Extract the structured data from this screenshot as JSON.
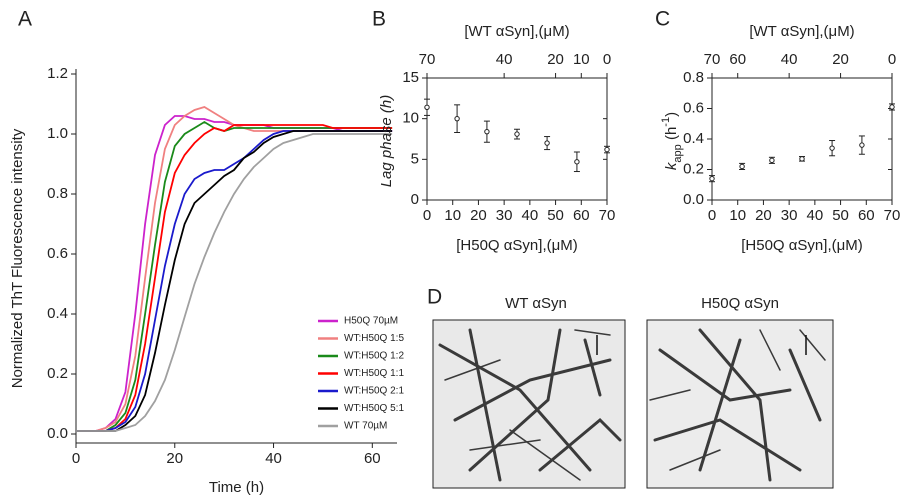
{
  "chart_data": [
    {
      "type": "line",
      "panel": "A",
      "x_label": "Time (h)",
      "y_label": "Normalized ThT Fluorescence intensity",
      "xlim": [
        0,
        65
      ],
      "ylim": [
        -0.03,
        1.2
      ],
      "xticks": [
        0,
        20,
        40,
        60
      ],
      "yticks": [
        {
          "value": 0,
          "label": "0.0"
        },
        0.2,
        0.4,
        0.6,
        0.8,
        {
          "value": 1,
          "label": "1.0"
        },
        1.2
      ],
      "x": [
        0,
        2,
        4,
        6,
        8,
        10,
        12,
        14,
        16,
        18,
        20,
        22,
        24,
        26,
        28,
        30,
        32,
        34,
        36,
        38,
        40,
        42,
        44,
        46,
        48,
        50,
        52,
        54,
        56,
        58,
        60,
        62,
        64
      ],
      "series": [
        {
          "name": "H50Q 70µM",
          "color": "#cc22cc",
          "values": [
            0.01,
            0.01,
            0.01,
            0.02,
            0.05,
            0.14,
            0.4,
            0.7,
            0.93,
            1.03,
            1.06,
            1.06,
            1.05,
            1.05,
            1.04,
            1.04,
            1.03,
            1.03,
            1.03,
            1.03,
            1.02,
            1.02,
            1.02,
            1.02,
            1.02,
            1.02,
            1.02,
            1.01,
            1.01,
            1.01,
            1.01,
            1.01,
            1.01
          ]
        },
        {
          "name": "WT:H50Q 1:5",
          "color": "#f08080",
          "values": [
            0.01,
            0.01,
            0.01,
            0.02,
            0.04,
            0.1,
            0.26,
            0.52,
            0.77,
            0.95,
            1.03,
            1.06,
            1.08,
            1.09,
            1.07,
            1.05,
            1.03,
            1.02,
            1.01,
            1.01,
            1.01,
            1.01,
            1.01,
            1.01,
            1.01,
            1.01,
            1.01,
            1.01,
            1.01,
            1.01,
            1.01,
            1.01,
            1.01
          ]
        },
        {
          "name": "WT:H50Q 1:2",
          "color": "#1a8a1a",
          "values": [
            0.01,
            0.01,
            0.01,
            0.01,
            0.03,
            0.07,
            0.18,
            0.4,
            0.63,
            0.84,
            0.96,
            1.0,
            1.02,
            1.04,
            1.02,
            1.01,
            1.02,
            1.02,
            1.02,
            1.02,
            1.02,
            1.02,
            1.02,
            1.02,
            1.02,
            1.02,
            1.02,
            1.02,
            1.02,
            1.02,
            1.02,
            1.02,
            1.02
          ]
        },
        {
          "name": "WT:H50Q 1:1",
          "color": "#ff0000",
          "values": [
            0.01,
            0.01,
            0.01,
            0.01,
            0.02,
            0.05,
            0.13,
            0.3,
            0.52,
            0.74,
            0.87,
            0.93,
            0.97,
            1.0,
            1.02,
            1.01,
            1.03,
            1.03,
            1.03,
            1.03,
            1.03,
            1.03,
            1.03,
            1.03,
            1.03,
            1.03,
            1.02,
            1.02,
            1.02,
            1.02,
            1.02,
            1.02,
            1.02
          ]
        },
        {
          "name": "WT:H50Q 2:1",
          "color": "#1a1acc",
          "values": [
            0.01,
            0.01,
            0.01,
            0.01,
            0.02,
            0.04,
            0.09,
            0.2,
            0.38,
            0.56,
            0.7,
            0.8,
            0.85,
            0.87,
            0.88,
            0.88,
            0.9,
            0.92,
            0.95,
            0.98,
            1.0,
            1.01,
            1.01,
            1.01,
            1.01,
            1.01,
            1.01,
            1.01,
            1.01,
            1.01,
            1.01,
            1.01,
            1.01
          ]
        },
        {
          "name": "WT:H50Q 5:1",
          "color": "#000000",
          "values": [
            0.01,
            0.01,
            0.01,
            0.01,
            0.01,
            0.03,
            0.06,
            0.13,
            0.27,
            0.43,
            0.58,
            0.7,
            0.77,
            0.8,
            0.83,
            0.86,
            0.88,
            0.92,
            0.94,
            0.97,
            0.99,
            1.0,
            1.01,
            1.01,
            1.01,
            1.01,
            1.01,
            1.01,
            1.01,
            1.01,
            1.01,
            1.01,
            1.01
          ]
        },
        {
          "name": "WT 70µM",
          "color": "#a0a0a0",
          "values": [
            0.01,
            0.01,
            0.01,
            0.01,
            0.01,
            0.02,
            0.03,
            0.06,
            0.11,
            0.18,
            0.28,
            0.39,
            0.5,
            0.59,
            0.67,
            0.74,
            0.8,
            0.85,
            0.89,
            0.92,
            0.95,
            0.97,
            0.98,
            0.99,
            1.0,
            1.0,
            1.0,
            1.0,
            1.0,
            1.0,
            1.0,
            1.0,
            1.0
          ]
        }
      ]
    },
    {
      "type": "errorscatter",
      "panel": "B",
      "x_label": "[H50Q αSyn],(μM)",
      "top_label": "[WT αSyn],(μM)",
      "y_label": [
        "Lag phase (h)"
      ],
      "xlim": [
        0,
        70
      ],
      "ylim": [
        0,
        15
      ],
      "xticks": [
        0,
        10,
        20,
        30,
        40,
        50,
        60,
        70
      ],
      "yticks": [
        0,
        5,
        10,
        15
      ],
      "x2lim": [
        70,
        0
      ],
      "x2ticks": [
        70,
        40,
        20,
        10,
        0
      ],
      "x": [
        0,
        11.7,
        23.3,
        35,
        46.7,
        58.3,
        70
      ],
      "values": [
        11.4,
        10.0,
        8.4,
        8.1,
        7.0,
        4.7,
        6.2
      ],
      "errors": [
        1.0,
        1.7,
        1.3,
        0.6,
        0.8,
        1.2,
        0.4
      ]
    },
    {
      "type": "errorscatter",
      "panel": "C",
      "x_label": "[H50Q αSyn],(μM)",
      "top_label": "[WT αSyn],(μM)",
      "y_label": [
        "k",
        "app",
        " (h",
        "-1",
        ")"
      ],
      "xlim": [
        0,
        70
      ],
      "ylim": [
        0,
        0.8
      ],
      "xticks": [
        0,
        10,
        20,
        30,
        40,
        50,
        60,
        70
      ],
      "yticks": [
        {
          "value": 0,
          "label": "0.0"
        },
        0.2,
        0.4,
        0.6,
        0.8
      ],
      "x2lim": [
        70,
        0
      ],
      "x2ticks": [
        70,
        60,
        40,
        20,
        0
      ],
      "x": [
        0,
        11.7,
        23.3,
        35,
        46.7,
        58.3,
        70
      ],
      "values": [
        0.14,
        0.22,
        0.26,
        0.27,
        0.34,
        0.36,
        0.61
      ],
      "errors": [
        0.02,
        0.02,
        0.02,
        0.015,
        0.05,
        0.06,
        0.02
      ]
    }
  ],
  "panel_d": {
    "letter": "D",
    "titles": [
      "WT αSyn",
      "H50Q αSyn"
    ]
  }
}
